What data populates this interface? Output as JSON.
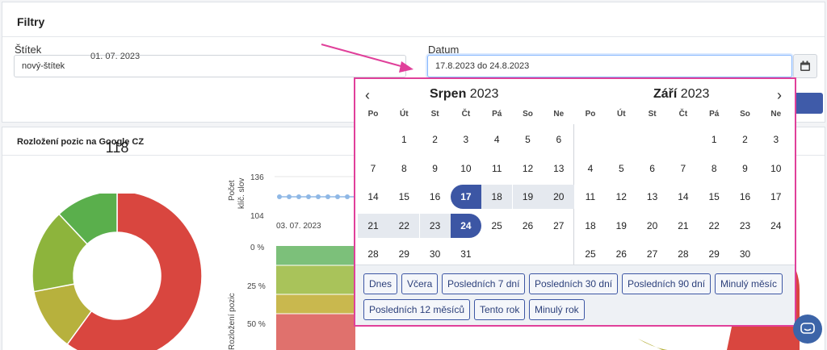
{
  "filters": {
    "title": "Filtry",
    "tag_label": "Štítek",
    "tag_value": "nový-štítek",
    "date_label": "Datum",
    "date_value": "17.8.2023 do 24.8.2023"
  },
  "chart_section": {
    "title": "Rozložení pozic na Google CZ",
    "donut_date": "01. 07. 2023",
    "donut_center": "118",
    "line_axis_label_1": "Počet",
    "line_axis_label_2": "klíč. slov",
    "line_tick_top": "136",
    "line_tick_bottom": "104",
    "line_x_label": "03. 07. 2023",
    "area_axis_label": "Rozložení pozic",
    "area_ticks": [
      "0 %",
      "25 %",
      "50 %"
    ]
  },
  "chart_data": {
    "type": "pie",
    "title": "",
    "center_value": 118,
    "categories": [
      "red",
      "olive",
      "yellow-green",
      "green"
    ],
    "values": [
      60,
      12,
      16,
      12
    ],
    "colors": [
      "#d9463f",
      "#b7b13d",
      "#8db43c",
      "#5aaf4c"
    ]
  },
  "colors": {
    "accent": "#3c56a4",
    "highlight_border": "#e0409a",
    "range_bg": "#e5e9ef"
  },
  "calendar": {
    "left": {
      "month": "Srpen",
      "year": "2023",
      "weekdays": [
        "Po",
        "Út",
        "St",
        "Čt",
        "Pá",
        "So",
        "Ne"
      ],
      "weeks": [
        [
          "",
          "1",
          "2",
          "3",
          "4",
          "5",
          "6"
        ],
        [
          "7",
          "8",
          "9",
          "10",
          "11",
          "12",
          "13"
        ],
        [
          "14",
          "15",
          "16",
          "17",
          "18",
          "19",
          "20"
        ],
        [
          "21",
          "22",
          "23",
          "24",
          "25",
          "26",
          "27"
        ],
        [
          "28",
          "29",
          "30",
          "31",
          "",
          "",
          ""
        ]
      ]
    },
    "right": {
      "month": "Září",
      "year": "2023",
      "weekdays": [
        "Po",
        "Út",
        "St",
        "Čt",
        "Pá",
        "So",
        "Ne"
      ],
      "weeks": [
        [
          "",
          "",
          "",
          "",
          "1",
          "2",
          "3"
        ],
        [
          "4",
          "5",
          "6",
          "7",
          "8",
          "9",
          "10"
        ],
        [
          "11",
          "12",
          "13",
          "14",
          "15",
          "16",
          "17"
        ],
        [
          "18",
          "19",
          "20",
          "21",
          "22",
          "23",
          "24"
        ],
        [
          "25",
          "26",
          "27",
          "28",
          "29",
          "30",
          ""
        ]
      ]
    },
    "range_start": "17",
    "range_end": "24",
    "prev_symbol": "‹",
    "next_symbol": "›",
    "quick_ranges": [
      "Dnes",
      "Včera",
      "Posledních 7 dní",
      "Posledních 30 dní",
      "Posledních 90 dní",
      "Minulý měsíc",
      "Posledních 12 měsíců",
      "Tento rok",
      "Minulý rok"
    ]
  }
}
